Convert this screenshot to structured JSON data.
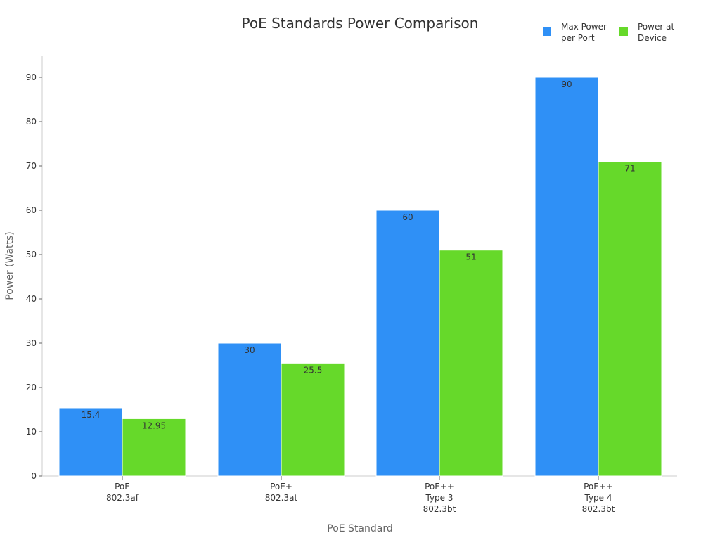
{
  "chart_data": {
    "type": "bar",
    "title": "PoE Standards Power Comparison",
    "xlabel": "PoE Standard",
    "ylabel": "Power (Watts)",
    "ylim": [
      0,
      95
    ],
    "yticks": [
      0,
      10,
      20,
      30,
      40,
      50,
      60,
      70,
      80,
      90
    ],
    "categories": [
      [
        "PoE",
        "802.3af"
      ],
      [
        "PoE+",
        "802.3at"
      ],
      [
        "PoE++",
        "Type 3",
        "802.3bt"
      ],
      [
        "PoE++",
        "Type 4",
        "802.3bt"
      ]
    ],
    "series": [
      {
        "name": [
          "Max Power",
          "per Port"
        ],
        "color": "#2f90f6",
        "values": [
          15.4,
          30,
          60,
          90
        ],
        "labels": [
          "15.4",
          "30",
          "60",
          "90"
        ]
      },
      {
        "name": [
          "Power at",
          "Device"
        ],
        "color": "#66d92a",
        "values": [
          12.95,
          25.5,
          51,
          71
        ],
        "labels": [
          "12.95",
          "25.5",
          "51",
          "71"
        ]
      }
    ],
    "legend_position": "top-right",
    "grid": false
  }
}
